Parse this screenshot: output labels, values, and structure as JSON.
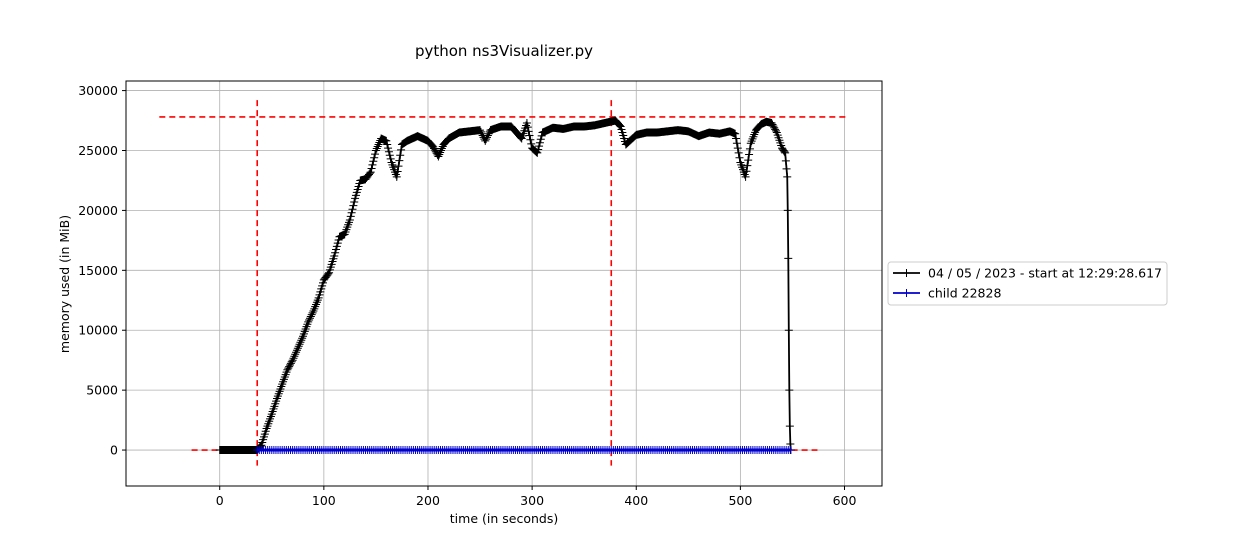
{
  "chart_data": {
    "type": "line",
    "title": "python ns3Visualizer.py",
    "xlabel": "time (in seconds)",
    "ylabel": "memory used (in MiB)",
    "xlim": [
      -90,
      636
    ],
    "ylim": [
      -3000,
      30800
    ],
    "xticks": [
      0,
      100,
      200,
      300,
      400,
      500,
      600
    ],
    "yticks": [
      0,
      5000,
      10000,
      15000,
      20000,
      25000,
      30000
    ],
    "grid": true,
    "legend_position": "right-outside",
    "series": [
      {
        "name": "04 / 05 / 2023 - start at 12:29:28.617",
        "color": "#000000",
        "marker": "plus",
        "points": [
          [
            0,
            0
          ],
          [
            10,
            0
          ],
          [
            20,
            0
          ],
          [
            30,
            0
          ],
          [
            36,
            0
          ],
          [
            40,
            400
          ],
          [
            45,
            1800
          ],
          [
            50,
            3000
          ],
          [
            55,
            4300
          ],
          [
            60,
            5500
          ],
          [
            65,
            6700
          ],
          [
            70,
            7500
          ],
          [
            75,
            8500
          ],
          [
            80,
            9500
          ],
          [
            85,
            10700
          ],
          [
            90,
            11600
          ],
          [
            95,
            12700
          ],
          [
            100,
            14200
          ],
          [
            105,
            14800
          ],
          [
            110,
            16200
          ],
          [
            115,
            17800
          ],
          [
            120,
            18000
          ],
          [
            125,
            19200
          ],
          [
            130,
            21000
          ],
          [
            135,
            22500
          ],
          [
            140,
            22600
          ],
          [
            145,
            23200
          ],
          [
            150,
            25000
          ],
          [
            155,
            26000
          ],
          [
            160,
            25800
          ],
          [
            165,
            24000
          ],
          [
            170,
            22800
          ],
          [
            175,
            25500
          ],
          [
            180,
            25800
          ],
          [
            185,
            26000
          ],
          [
            190,
            26200
          ],
          [
            195,
            26000
          ],
          [
            200,
            25800
          ],
          [
            205,
            25300
          ],
          [
            210,
            24500
          ],
          [
            215,
            25500
          ],
          [
            220,
            26000
          ],
          [
            230,
            26500
          ],
          [
            240,
            26600
          ],
          [
            250,
            26700
          ],
          [
            255,
            25800
          ],
          [
            260,
            26700
          ],
          [
            270,
            27000
          ],
          [
            280,
            27000
          ],
          [
            290,
            26000
          ],
          [
            295,
            27300
          ],
          [
            300,
            25200
          ],
          [
            305,
            24800
          ],
          [
            310,
            26500
          ],
          [
            320,
            26900
          ],
          [
            330,
            26800
          ],
          [
            340,
            27000
          ],
          [
            350,
            27000
          ],
          [
            360,
            27100
          ],
          [
            370,
            27300
          ],
          [
            380,
            27500
          ],
          [
            385,
            27000
          ],
          [
            390,
            25500
          ],
          [
            400,
            26300
          ],
          [
            410,
            26500
          ],
          [
            420,
            26500
          ],
          [
            430,
            26600
          ],
          [
            440,
            26700
          ],
          [
            450,
            26600
          ],
          [
            460,
            26200
          ],
          [
            470,
            26500
          ],
          [
            480,
            26400
          ],
          [
            490,
            26600
          ],
          [
            495,
            26400
          ],
          [
            500,
            24000
          ],
          [
            505,
            22800
          ],
          [
            510,
            25600
          ],
          [
            515,
            26700
          ],
          [
            520,
            27200
          ],
          [
            525,
            27400
          ],
          [
            530,
            27300
          ],
          [
            535,
            26500
          ],
          [
            540,
            25200
          ],
          [
            543,
            24800
          ],
          [
            545,
            22800
          ],
          [
            545.5,
            20000
          ],
          [
            546,
            16000
          ],
          [
            546.5,
            10000
          ],
          [
            547,
            5000
          ],
          [
            547.5,
            2000
          ],
          [
            548,
            500
          ],
          [
            548.5,
            0
          ]
        ]
      },
      {
        "name": "child 22828",
        "color": "#0000cc",
        "marker": "plus",
        "points": [
          [
            36,
            0
          ],
          [
            100,
            0
          ],
          [
            200,
            0
          ],
          [
            300,
            0
          ],
          [
            400,
            0
          ],
          [
            500,
            0
          ],
          [
            548,
            0
          ]
        ]
      }
    ],
    "reference_lines": [
      {
        "orientation": "vertical",
        "x": 36,
        "range": [
          -1300,
          29200
        ],
        "color": "#ff0000",
        "style": "dashed"
      },
      {
        "orientation": "vertical",
        "x": 376,
        "range": [
          -1300,
          29200
        ],
        "color": "#ff0000",
        "style": "dashed"
      },
      {
        "orientation": "horizontal",
        "y": 27800,
        "range": [
          -58,
          604
        ],
        "color": "#ff0000",
        "style": "dashed"
      },
      {
        "orientation": "horizontal",
        "y": 0,
        "range": [
          -27,
          574
        ],
        "color": "#ff0000",
        "style": "dashed"
      }
    ]
  }
}
